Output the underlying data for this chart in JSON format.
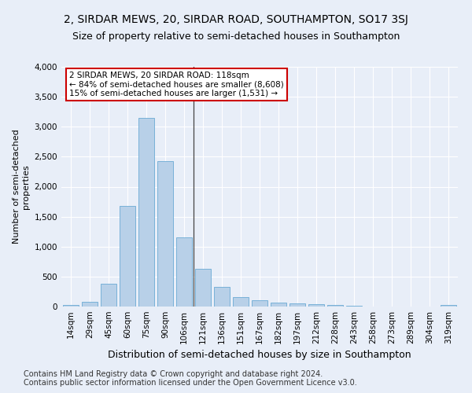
{
  "title": "2, SIRDAR MEWS, 20, SIRDAR ROAD, SOUTHAMPTON, SO17 3SJ",
  "subtitle": "Size of property relative to semi-detached houses in Southampton",
  "xlabel": "Distribution of semi-detached houses by size in Southampton",
  "ylabel": "Number of semi-detached\nproperties",
  "categories": [
    "14sqm",
    "29sqm",
    "45sqm",
    "60sqm",
    "75sqm",
    "90sqm",
    "106sqm",
    "121sqm",
    "136sqm",
    "151sqm",
    "167sqm",
    "182sqm",
    "197sqm",
    "212sqm",
    "228sqm",
    "243sqm",
    "258sqm",
    "273sqm",
    "289sqm",
    "304sqm",
    "319sqm"
  ],
  "values": [
    25,
    80,
    380,
    1680,
    3150,
    2430,
    1150,
    630,
    330,
    160,
    100,
    70,
    55,
    35,
    20,
    10,
    5,
    3,
    2,
    1,
    30
  ],
  "bar_color": "#b8d0e8",
  "bar_edge_color": "#6aaad4",
  "annotation_line1": "2 SIRDAR MEWS, 20 SIRDAR ROAD: 118sqm",
  "annotation_line2": "← 84% of semi-detached houses are smaller (8,608)",
  "annotation_line3": "15% of semi-detached houses are larger (1,531) →",
  "annotation_box_color": "#ffffff",
  "annotation_box_edge": "#cc0000",
  "bg_color": "#e8eef8",
  "plot_bg_color": "#e8eef8",
  "grid_color": "#ffffff",
  "footer1": "Contains HM Land Registry data © Crown copyright and database right 2024.",
  "footer2": "Contains public sector information licensed under the Open Government Licence v3.0.",
  "ylim": [
    0,
    4000
  ],
  "yticks": [
    0,
    500,
    1000,
    1500,
    2000,
    2500,
    3000,
    3500,
    4000
  ],
  "title_fontsize": 10,
  "subtitle_fontsize": 9,
  "xlabel_fontsize": 9,
  "ylabel_fontsize": 8,
  "tick_fontsize": 7.5,
  "annotation_fontsize": 7.5,
  "footer_fontsize": 7
}
